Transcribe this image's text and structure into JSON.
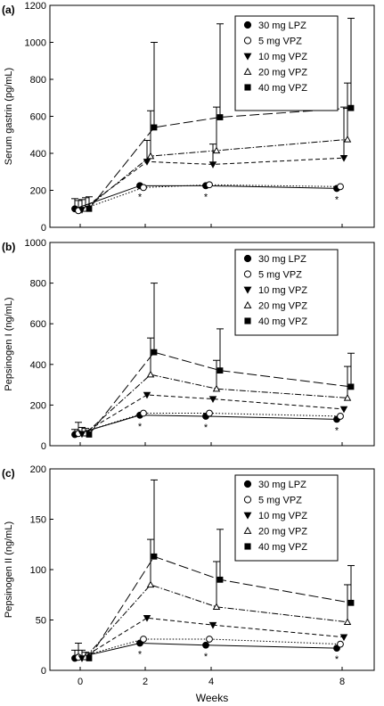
{
  "figure": {
    "x_label": "Weeks",
    "x_ticks": [
      "0",
      "2",
      "4",
      "8"
    ]
  },
  "chart_data": [
    {
      "type": "line",
      "panel_label": "(a)",
      "ylabel": "Serum gastrin (pg/mL)",
      "ylim": [
        0,
        1200
      ],
      "yticks": [
        0,
        200,
        400,
        600,
        800,
        1000,
        1200
      ],
      "x": [
        0,
        2,
        4,
        8
      ],
      "xlabel": "Weeks",
      "significance_marks": [
        "*",
        "*",
        "*"
      ],
      "series": [
        {
          "name": "30 mg LPZ",
          "marker": "filled-circle",
          "line": "solid",
          "values": [
            100,
            225,
            225,
            210
          ],
          "error_upper": [
            155,
            0,
            0,
            0
          ]
        },
        {
          "name": "5 mg VPZ",
          "marker": "open-circle",
          "line": "dotted",
          "values": [
            90,
            215,
            230,
            220
          ],
          "error_upper": [
            145,
            0,
            0,
            0
          ]
        },
        {
          "name": "10 mg VPZ",
          "marker": "filled-triangle-down",
          "line": "short-dash",
          "values": [
            95,
            355,
            340,
            375
          ],
          "error_upper": [
            150,
            470,
            450,
            650
          ]
        },
        {
          "name": "20 mg VPZ",
          "marker": "open-triangle-up",
          "line": "dash-dot",
          "values": [
            100,
            385,
            415,
            475
          ],
          "error_upper": [
            160,
            630,
            650,
            780
          ]
        },
        {
          "name": "40 mg VPZ",
          "marker": "filled-square",
          "line": "long-dash",
          "values": [
            100,
            540,
            595,
            645
          ],
          "error_upper": [
            165,
            1000,
            1100,
            1130
          ]
        }
      ]
    },
    {
      "type": "line",
      "panel_label": "(b)",
      "ylabel": "Pepsinogen I (ng/mL)",
      "ylim": [
        0,
        1000
      ],
      "yticks": [
        0,
        200,
        400,
        600,
        800,
        1000
      ],
      "x": [
        0,
        2,
        4,
        8
      ],
      "xlabel": "Weeks",
      "significance_marks": [
        "*",
        "*",
        "*"
      ],
      "series": [
        {
          "name": "30 mg LPZ",
          "marker": "filled-circle",
          "line": "solid",
          "values": [
            55,
            150,
            145,
            130
          ],
          "error_upper": [
            80,
            0,
            0,
            0
          ]
        },
        {
          "name": "5 mg VPZ",
          "marker": "open-circle",
          "line": "dotted",
          "values": [
            60,
            160,
            160,
            145
          ],
          "error_upper": [
            115,
            0,
            0,
            0
          ]
        },
        {
          "name": "10 mg VPZ",
          "marker": "filled-triangle-down",
          "line": "short-dash",
          "values": [
            58,
            250,
            230,
            180
          ],
          "error_upper": [
            90,
            0,
            0,
            0
          ]
        },
        {
          "name": "20 mg VPZ",
          "marker": "open-triangle-up",
          "line": "dash-dot",
          "values": [
            60,
            350,
            280,
            235
          ],
          "error_upper": [
            85,
            530,
            420,
            390
          ]
        },
        {
          "name": "40 mg VPZ",
          "marker": "filled-square",
          "line": "long-dash",
          "values": [
            55,
            460,
            370,
            290
          ],
          "error_upper": [
            75,
            800,
            575,
            455
          ]
        }
      ]
    },
    {
      "type": "line",
      "panel_label": "(c)",
      "ylabel": "Pepsinogen II (ng/mL)",
      "ylim": [
        0,
        200
      ],
      "yticks": [
        0,
        50,
        100,
        150,
        200
      ],
      "x": [
        0,
        2,
        4,
        8
      ],
      "xlabel": "Weeks",
      "significance_marks": [
        "*",
        "*",
        "*"
      ],
      "series": [
        {
          "name": "30 mg LPZ",
          "marker": "filled-circle",
          "line": "solid",
          "values": [
            12,
            27,
            25,
            22
          ],
          "error_upper": [
            20,
            0,
            0,
            0
          ]
        },
        {
          "name": "5 mg VPZ",
          "marker": "open-circle",
          "line": "dotted",
          "values": [
            13,
            31,
            31,
            26
          ],
          "error_upper": [
            27,
            0,
            0,
            0
          ]
        },
        {
          "name": "10 mg VPZ",
          "marker": "filled-triangle-down",
          "line": "short-dash",
          "values": [
            12,
            52,
            45,
            33
          ],
          "error_upper": [
            20,
            0,
            0,
            0
          ]
        },
        {
          "name": "20 mg VPZ",
          "marker": "open-triangle-up",
          "line": "dash-dot",
          "values": [
            13,
            85,
            63,
            48
          ],
          "error_upper": [
            18,
            130,
            108,
            85
          ]
        },
        {
          "name": "40 mg VPZ",
          "marker": "filled-square",
          "line": "long-dash",
          "values": [
            12,
            113,
            90,
            67
          ],
          "error_upper": [
            17,
            189,
            140,
            104
          ]
        }
      ]
    }
  ]
}
